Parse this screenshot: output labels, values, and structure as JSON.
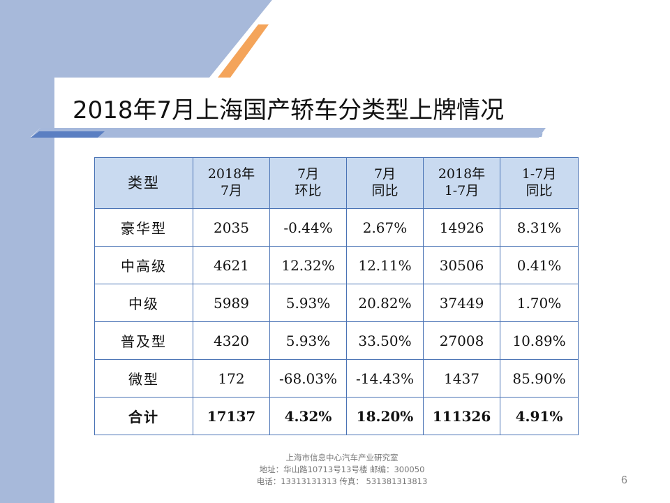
{
  "title": "2018年7月上海国产轿车分类型上牌情况",
  "colors": {
    "left_band": "#a7b9da",
    "header_fill": "#c9daf0",
    "border": "#4a73b5",
    "accent_orange": "#f4a45a",
    "accent_blue": "#5b7fc2"
  },
  "table": {
    "headers": [
      {
        "line1": "类型",
        "line2": ""
      },
      {
        "line1": "2018年",
        "line2": "7月"
      },
      {
        "line1": "7月",
        "line2": "环比"
      },
      {
        "line1": "7月",
        "line2": "同比"
      },
      {
        "line1": "2018年",
        "line2": "1-7月"
      },
      {
        "line1": "1-7月",
        "line2": "同比"
      }
    ],
    "rows": [
      {
        "type": "豪华型",
        "jul": "2035",
        "mom": "-0.44%",
        "yoy": "2.67%",
        "ytd": "14926",
        "ytd_yoy": "8.31%"
      },
      {
        "type": "中高级",
        "jul": "4621",
        "mom": "12.32%",
        "yoy": "12.11%",
        "ytd": "30506",
        "ytd_yoy": "0.41%"
      },
      {
        "type": "中级",
        "jul": "5989",
        "mom": "5.93%",
        "yoy": "20.82%",
        "ytd": "37449",
        "ytd_yoy": "1.70%"
      },
      {
        "type": "普及型",
        "jul": "4320",
        "mom": "5.93%",
        "yoy": "33.50%",
        "ytd": "27008",
        "ytd_yoy": "10.89%"
      },
      {
        "type": "微型",
        "jul": "172",
        "mom": "-68.03%",
        "yoy": "-14.43%",
        "ytd": "1437",
        "ytd_yoy": "85.90%"
      }
    ],
    "total": {
      "type": "合计",
      "jul": "17137",
      "mom": "4.32%",
      "yoy": "18.20%",
      "ytd": "111326",
      "ytd_yoy": "4.91%"
    }
  },
  "footer": {
    "line1": "上海市信息中心汽车产业研究室",
    "line2": "地址：华山路10713号13号楼    邮编：300050",
    "line3": "电话：13313131313  传真： 531381313813"
  },
  "page_number": "6"
}
